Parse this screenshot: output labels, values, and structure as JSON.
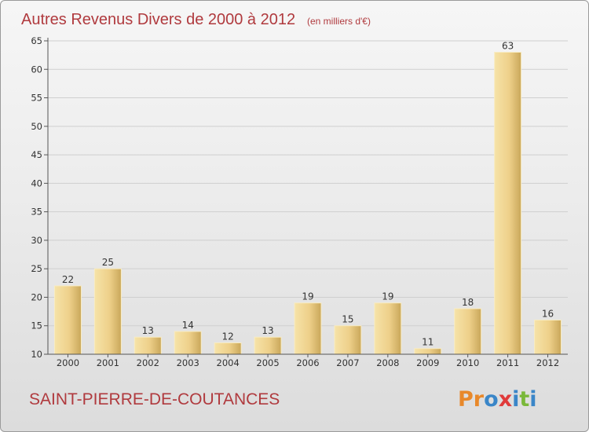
{
  "chart_data": {
    "type": "bar",
    "title": "Autres Revenus Divers de 2000 à 2012",
    "subtitle": "(en milliers d'€)",
    "categories": [
      "2000",
      "2001",
      "2002",
      "2003",
      "2004",
      "2005",
      "2006",
      "2007",
      "2008",
      "2009",
      "2010",
      "2011",
      "2012"
    ],
    "values": [
      22,
      25,
      13,
      14,
      12,
      13,
      19,
      15,
      19,
      11,
      18,
      63,
      16
    ],
    "ylim": [
      10,
      65
    ],
    "yticks": [
      10,
      15,
      20,
      25,
      30,
      35,
      40,
      45,
      50,
      55,
      60,
      65
    ],
    "grid": true,
    "colors": {
      "bar_light": "#f3dc9a",
      "bar_dark": "#c8a658",
      "grid": "#cfcfcf",
      "title": "#b03a3e"
    }
  },
  "place": "SAINT-PIERRE-DE-COUTANCES",
  "logo": {
    "text": "Proxiti",
    "letter_colors": [
      "#e8882a",
      "#e8882a",
      "#3a86c8",
      "#e03a3a",
      "#3a86c8",
      "#7ab83a",
      "#3a86c8"
    ]
  }
}
